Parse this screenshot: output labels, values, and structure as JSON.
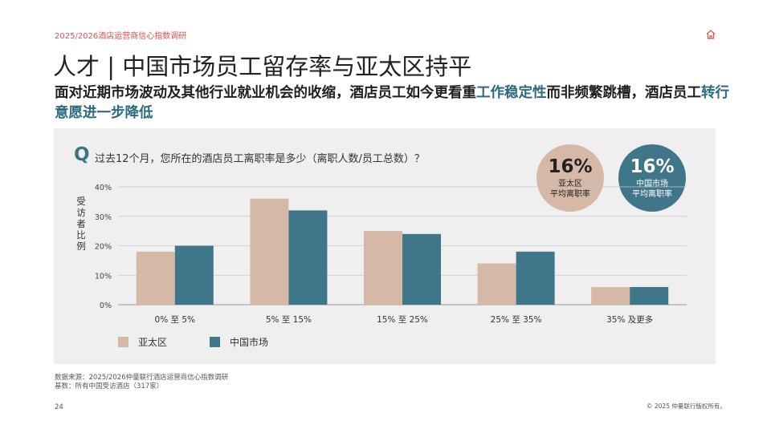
{
  "header": {
    "report_label": "2025/2026酒店运营商信心指数调研",
    "title": "人才 | 中国市场员工留存率与亚太区持平",
    "subtitle_part1": "面对近期市场波动及其他行业就业机会的收缩，酒店员工如今更看重",
    "subtitle_hl1": "工作稳定性",
    "subtitle_part2": "而非频繁跳槽，酒店员工",
    "subtitle_hl2": "转行意愿进一步降低"
  },
  "question": {
    "mark": "Q",
    "text": "过去12个月，您所在的酒店员工离职率是多少（离职人数/员工总数）？"
  },
  "bubbles": [
    {
      "value": "16%",
      "label_line1": "亚太区",
      "label_line2": "平均离职率",
      "color": "#d6b8a6"
    },
    {
      "value": "16%",
      "label_line1": "中国市场",
      "label_line2": "平均离职率",
      "color": "#3f7689"
    }
  ],
  "chart_data": {
    "type": "bar",
    "categories": [
      "0% 至 5%",
      "5% 至 15%",
      "15% 至 25%",
      "25% 至 35%",
      "35% 及更多"
    ],
    "series": [
      {
        "name": "亚太区",
        "values": [
          18,
          36,
          25,
          14,
          6
        ],
        "color": "#d6b8a6"
      },
      {
        "name": "中国市场",
        "values": [
          20,
          32,
          24,
          18,
          6
        ],
        "color": "#3f7689"
      }
    ],
    "ylim": [
      0,
      40
    ],
    "yticks": [
      "0%",
      "10%",
      "20%",
      "30%",
      "40%"
    ],
    "ytick_values": [
      0,
      10,
      20,
      30,
      40
    ],
    "ylabel": "受访者比例",
    "grid": true,
    "legend_position": "bottom-left"
  },
  "footer": {
    "source_line1": "数据来源：2025/2026仲量联行酒店运营商信心指数调研",
    "source_line2": "基数：所有中国受访酒店（317家）",
    "page_number": "24",
    "copyright": "© 2025 仲量联行版权所有。"
  }
}
